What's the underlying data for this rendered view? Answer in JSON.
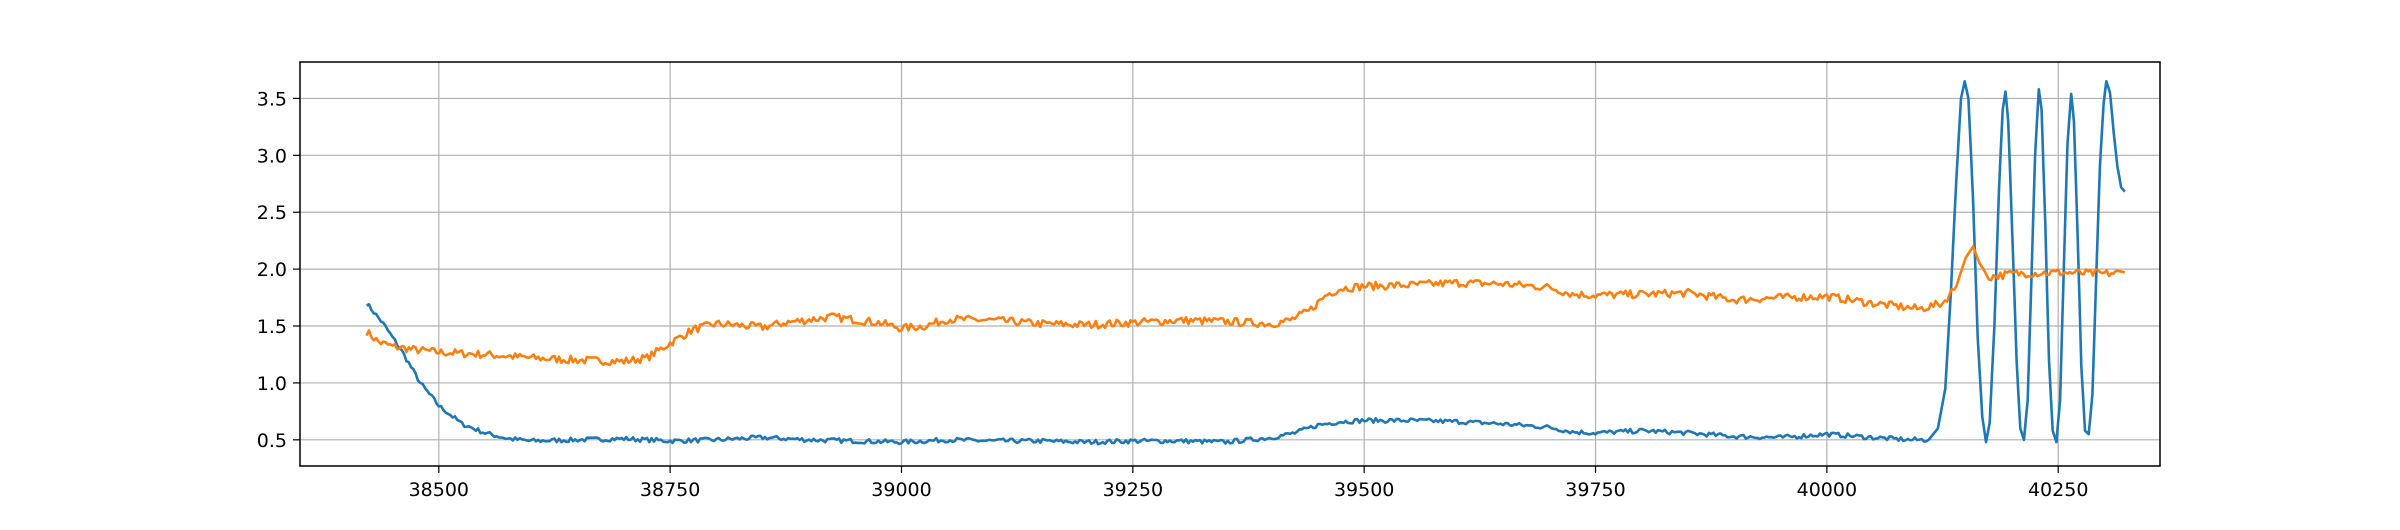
{
  "chart_data": {
    "type": "line",
    "title": "",
    "xlabel": "",
    "ylabel": "",
    "xlim": [
      38350,
      40360
    ],
    "ylim": [
      0.27,
      3.82
    ],
    "grid": true,
    "legend": "none",
    "x_ticks": [
      38500,
      38750,
      39000,
      39250,
      39500,
      39750,
      40000,
      40250
    ],
    "x_tick_labels": [
      "38500",
      "38750",
      "39000",
      "39250",
      "39500",
      "39750",
      "40000",
      "40250"
    ],
    "y_ticks": [
      0.5,
      1.0,
      1.5,
      2.0,
      2.5,
      3.0,
      3.5
    ],
    "y_tick_labels": [
      "0.5",
      "1.0",
      "1.5",
      "2.0",
      "2.5",
      "3.0",
      "3.5"
    ],
    "series": [
      {
        "color": "#1f77b4",
        "points": [
          [
            38422,
            1.7
          ],
          [
            38440,
            1.52
          ],
          [
            38460,
            1.28
          ],
          [
            38480,
            1.0
          ],
          [
            38500,
            0.8
          ],
          [
            38525,
            0.64
          ],
          [
            38550,
            0.56
          ],
          [
            38575,
            0.51
          ],
          [
            38600,
            0.49
          ],
          [
            38650,
            0.5
          ],
          [
            38700,
            0.51
          ],
          [
            38750,
            0.49
          ],
          [
            38800,
            0.5
          ],
          [
            38850,
            0.52
          ],
          [
            38900,
            0.5
          ],
          [
            38950,
            0.49
          ],
          [
            39000,
            0.48
          ],
          [
            39050,
            0.5
          ],
          [
            39100,
            0.49
          ],
          [
            39150,
            0.49
          ],
          [
            39200,
            0.48
          ],
          [
            39250,
            0.49
          ],
          [
            39300,
            0.49
          ],
          [
            39350,
            0.48
          ],
          [
            39400,
            0.52
          ],
          [
            39425,
            0.56
          ],
          [
            39450,
            0.63
          ],
          [
            39475,
            0.66
          ],
          [
            39500,
            0.67
          ],
          [
            39550,
            0.67
          ],
          [
            39600,
            0.66
          ],
          [
            39650,
            0.64
          ],
          [
            39700,
            0.61
          ],
          [
            39725,
            0.57
          ],
          [
            39750,
            0.56
          ],
          [
            39800,
            0.58
          ],
          [
            39850,
            0.56
          ],
          [
            39900,
            0.53
          ],
          [
            39950,
            0.52
          ],
          [
            40000,
            0.55
          ],
          [
            40050,
            0.52
          ],
          [
            40090,
            0.5
          ],
          [
            40110,
            0.5
          ],
          [
            40120,
            0.6
          ],
          [
            40128,
            0.95
          ],
          [
            40134,
            1.8
          ],
          [
            40140,
            2.8
          ],
          [
            40145,
            3.5
          ],
          [
            40149,
            3.65
          ],
          [
            40153,
            3.5
          ],
          [
            40158,
            2.6
          ],
          [
            40163,
            1.4
          ],
          [
            40168,
            0.7
          ],
          [
            40172,
            0.48
          ],
          [
            40176,
            0.65
          ],
          [
            40181,
            1.5
          ],
          [
            40186,
            2.7
          ],
          [
            40190,
            3.4
          ],
          [
            40193,
            3.56
          ],
          [
            40196,
            3.3
          ],
          [
            40200,
            2.4
          ],
          [
            40205,
            1.2
          ],
          [
            40209,
            0.6
          ],
          [
            40213,
            0.5
          ],
          [
            40217,
            0.85
          ],
          [
            40221,
            1.9
          ],
          [
            40225,
            3.0
          ],
          [
            40229,
            3.58
          ],
          [
            40232,
            3.4
          ],
          [
            40236,
            2.4
          ],
          [
            40240,
            1.2
          ],
          [
            40244,
            0.58
          ],
          [
            40248,
            0.48
          ],
          [
            40252,
            0.85
          ],
          [
            40256,
            2.0
          ],
          [
            40260,
            3.1
          ],
          [
            40264,
            3.54
          ],
          [
            40267,
            3.3
          ],
          [
            40271,
            2.3
          ],
          [
            40275,
            1.15
          ],
          [
            40279,
            0.58
          ],
          [
            40283,
            0.55
          ],
          [
            40287,
            0.9
          ],
          [
            40291,
            1.9
          ],
          [
            40295,
            2.9
          ],
          [
            40299,
            3.45
          ],
          [
            40302,
            3.65
          ],
          [
            40306,
            3.55
          ],
          [
            40310,
            3.2
          ],
          [
            40314,
            2.9
          ],
          [
            40318,
            2.72
          ],
          [
            40322,
            2.68
          ]
        ]
      },
      {
        "color": "#ff7f0e",
        "points": [
          [
            38422,
            1.45
          ],
          [
            38435,
            1.36
          ],
          [
            38450,
            1.32
          ],
          [
            38475,
            1.29
          ],
          [
            38500,
            1.27
          ],
          [
            38550,
            1.25
          ],
          [
            38600,
            1.22
          ],
          [
            38650,
            1.2
          ],
          [
            38700,
            1.19
          ],
          [
            38725,
            1.22
          ],
          [
            38750,
            1.35
          ],
          [
            38775,
            1.47
          ],
          [
            38800,
            1.52
          ],
          [
            38850,
            1.49
          ],
          [
            38875,
            1.53
          ],
          [
            38925,
            1.58
          ],
          [
            38975,
            1.53
          ],
          [
            39000,
            1.48
          ],
          [
            39025,
            1.5
          ],
          [
            39050,
            1.56
          ],
          [
            39100,
            1.55
          ],
          [
            39150,
            1.52
          ],
          [
            39200,
            1.51
          ],
          [
            39250,
            1.53
          ],
          [
            39300,
            1.55
          ],
          [
            39350,
            1.54
          ],
          [
            39400,
            1.52
          ],
          [
            39420,
            1.55
          ],
          [
            39440,
            1.63
          ],
          [
            39460,
            1.78
          ],
          [
            39475,
            1.83
          ],
          [
            39500,
            1.85
          ],
          [
            39550,
            1.86
          ],
          [
            39600,
            1.88
          ],
          [
            39650,
            1.87
          ],
          [
            39700,
            1.84
          ],
          [
            39725,
            1.78
          ],
          [
            39750,
            1.77
          ],
          [
            39800,
            1.78
          ],
          [
            39850,
            1.79
          ],
          [
            39900,
            1.73
          ],
          [
            39950,
            1.75
          ],
          [
            40000,
            1.76
          ],
          [
            40050,
            1.7
          ],
          [
            40100,
            1.65
          ],
          [
            40125,
            1.7
          ],
          [
            40140,
            1.85
          ],
          [
            40150,
            2.1
          ],
          [
            40158,
            2.2
          ],
          [
            40165,
            2.05
          ],
          [
            40175,
            1.93
          ],
          [
            40200,
            1.96
          ],
          [
            40250,
            1.97
          ],
          [
            40300,
            1.96
          ],
          [
            40322,
            1.97
          ]
        ]
      }
    ]
  }
}
